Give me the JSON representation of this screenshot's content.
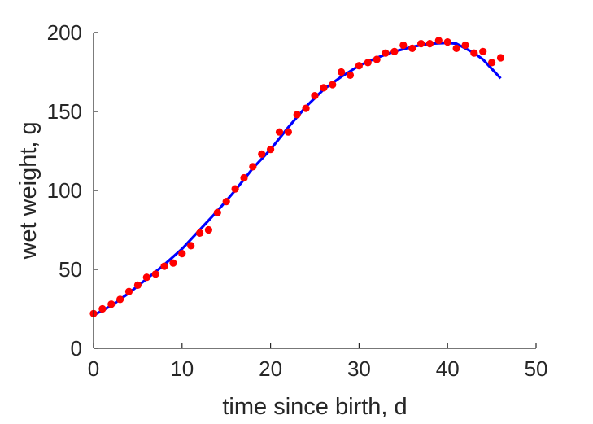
{
  "chart_data": {
    "type": "scatter",
    "title": "",
    "xlabel": "time since birth, d",
    "ylabel": "wet weight, g",
    "xlim": [
      0,
      50
    ],
    "ylim": [
      0,
      200
    ],
    "xticks": [
      0,
      10,
      20,
      30,
      40,
      50
    ],
    "yticks": [
      0,
      50,
      100,
      150,
      200
    ],
    "grid": false,
    "series": [
      {
        "kind": "points",
        "color": "#ff0000",
        "x": [
          0,
          1,
          2,
          3,
          4,
          5,
          6,
          7,
          8,
          9,
          10,
          11,
          12,
          13,
          14,
          15,
          16,
          17,
          18,
          19,
          20,
          21,
          22,
          23,
          24,
          25,
          26,
          27,
          28,
          29,
          30,
          31,
          32,
          33,
          34,
          35,
          36,
          37,
          38,
          39,
          40,
          41,
          42,
          43,
          44,
          45,
          46
        ],
        "y": [
          22,
          25,
          28,
          31,
          36,
          40,
          45,
          47,
          52,
          54,
          60,
          65,
          73,
          75,
          86,
          93,
          101,
          108,
          115,
          123,
          126,
          137,
          137,
          148,
          152,
          160,
          165,
          167,
          175,
          173,
          179,
          181,
          183,
          187,
          188,
          192,
          190,
          193,
          193,
          195,
          194,
          190,
          192,
          187,
          188,
          181,
          184
        ]
      },
      {
        "kind": "fit-line",
        "color": "#0000ff",
        "x": [
          0,
          2,
          4,
          6,
          8,
          10,
          12,
          14,
          16,
          18,
          20,
          22,
          24,
          26,
          28,
          30,
          32,
          34,
          36,
          38,
          40,
          41,
          42,
          43,
          44,
          45,
          46
        ],
        "y": [
          21,
          27,
          35,
          44,
          53,
          63,
          75,
          87,
          100,
          114,
          126,
          140,
          153,
          164,
          172,
          179,
          184,
          188,
          191,
          193,
          193.5,
          193,
          190,
          187,
          183,
          177,
          171
        ]
      }
    ]
  }
}
